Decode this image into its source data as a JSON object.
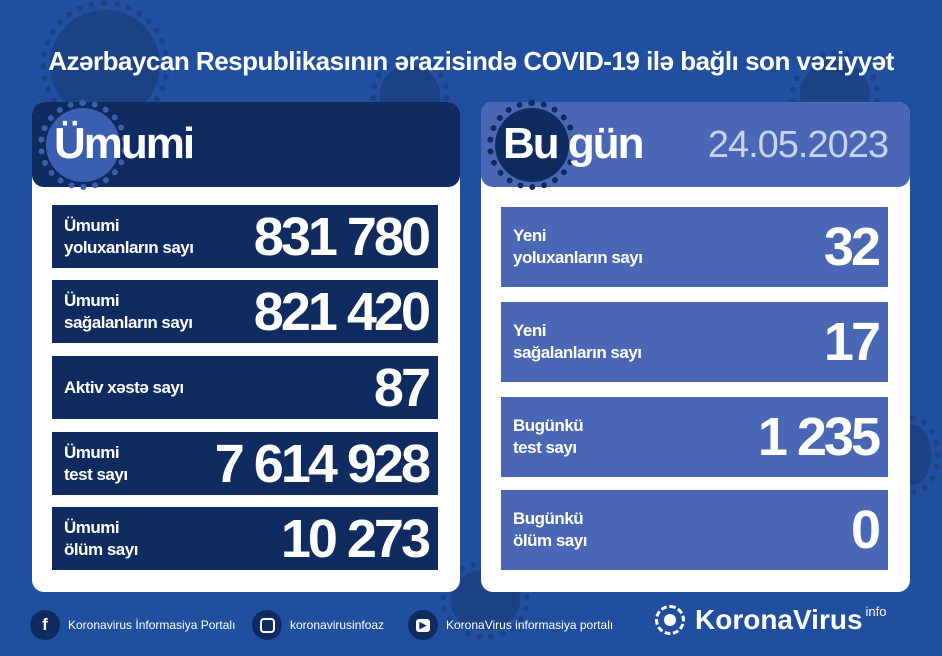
{
  "title": "Azərbaycan Respublikasının ərazisində COVID-19 ilə bağlı son vəziyyət",
  "colors": {
    "background": "#1f4f9e",
    "dark_navy": "#0f2b60",
    "today_blue": "#4a67b5",
    "date_text": "#c8d3f0"
  },
  "total": {
    "heading": "Ümumi",
    "rows": [
      {
        "label1": "Ümumi",
        "label2": "yoluxanların sayı",
        "value": "831 780"
      },
      {
        "label1": "Ümumi",
        "label2": "sağalanların sayı",
        "value": "821 420"
      },
      {
        "label1": "Aktiv xəstə sayı",
        "label2": "",
        "value": "87"
      },
      {
        "label1": "Ümumi",
        "label2": "test sayı",
        "value": "7 614 928"
      },
      {
        "label1": "Ümumi",
        "label2": "ölüm sayı",
        "value": "10 273"
      }
    ]
  },
  "today": {
    "heading": "Bu gün",
    "date": "24.05.2023",
    "rows": [
      {
        "label1": "Yeni",
        "label2": "yoluxanların sayı",
        "value": "32"
      },
      {
        "label1": "Yeni",
        "label2": "sağalanların sayı",
        "value": "17"
      },
      {
        "label1": "Bugünkü",
        "label2": "test sayı",
        "value": "1 235"
      },
      {
        "label1": "Bugünkü",
        "label2": "ölüm sayı",
        "value": "0"
      }
    ]
  },
  "footer": {
    "facebook": {
      "icon": "facebook-icon",
      "label": "Koronavirus İnformasiya Portalı"
    },
    "instagram": {
      "icon": "instagram-icon",
      "label": "koronavirusinfoaz"
    },
    "youtube": {
      "icon": "youtube-icon",
      "label": "KoronaVirus informasiya portalı"
    },
    "logo": {
      "text": "KoronaVirus",
      "sup": "info"
    }
  }
}
